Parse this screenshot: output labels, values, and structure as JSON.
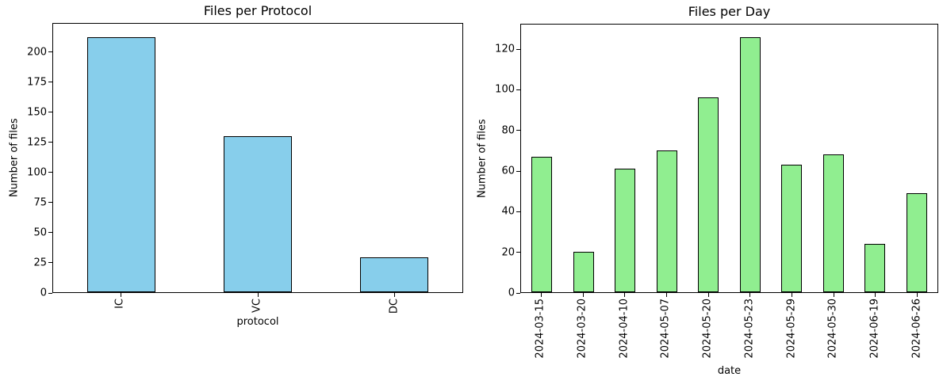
{
  "figure": {
    "background_color": "#ffffff",
    "text_color": "#000000"
  },
  "chart_data": [
    {
      "type": "bar",
      "title": "Files per Protocol",
      "xlabel": "protocol",
      "ylabel": "Number of files",
      "categories": [
        "IC",
        "VC",
        "DC"
      ],
      "values": [
        212,
        130,
        29
      ],
      "yticks": [
        0,
        25,
        50,
        75,
        100,
        125,
        150,
        175,
        200
      ],
      "ylim": [
        0,
        224
      ],
      "bar_color": "#87CEEB",
      "edge_color": "#000000",
      "xtick_rotation": 90,
      "grid": false,
      "legend": "none"
    },
    {
      "type": "bar",
      "title": "Files per Day",
      "xlabel": "date",
      "ylabel": "Number of files",
      "categories": [
        "2024-03-15",
        "2024-03-20",
        "2024-04-10",
        "2024-05-07",
        "2024-05-20",
        "2024-05-23",
        "2024-05-29",
        "2024-05-30",
        "2024-06-19",
        "2024-06-26"
      ],
      "values": [
        67,
        20,
        61,
        70,
        96,
        126,
        63,
        68,
        24,
        49
      ],
      "yticks": [
        0,
        20,
        40,
        60,
        80,
        100,
        120
      ],
      "ylim": [
        0,
        132.5
      ],
      "bar_color": "#90EE90",
      "edge_color": "#000000",
      "xtick_rotation": 90,
      "grid": false,
      "legend": "none"
    }
  ]
}
